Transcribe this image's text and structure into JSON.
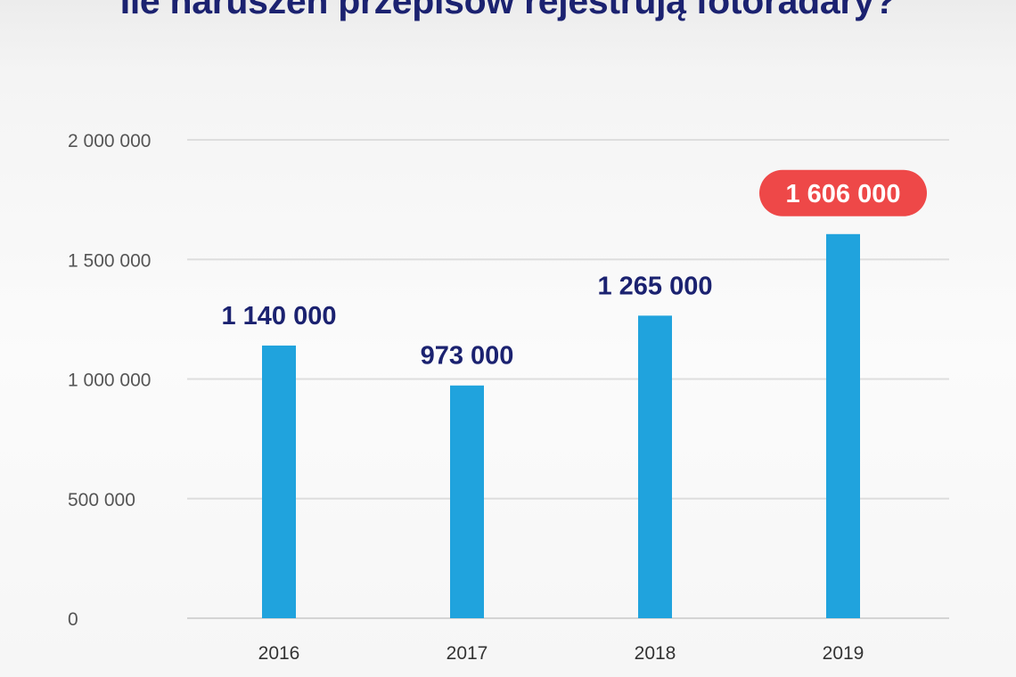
{
  "chart_data": {
    "type": "bar",
    "title": "Ile naruszeń przepisów rejestrują fotoradary?",
    "xlabel": "",
    "ylabel": "",
    "categories": [
      "2016",
      "2017",
      "2018",
      "2019"
    ],
    "values": [
      1140000,
      973000,
      1265000,
      1606000
    ],
    "data_labels": [
      "1 140 000",
      "973 000",
      "1 265 000",
      "1 606 000"
    ],
    "highlight_index": 3,
    "ylim": [
      0,
      2000000
    ],
    "yticks": [
      0,
      500000,
      1000000,
      1500000,
      2000000
    ],
    "ytick_labels": [
      "0",
      "500 000",
      "1 000 000",
      "1 500 000",
      "2 000 000"
    ],
    "grid": true,
    "colors": {
      "bar": "#20a3dd",
      "label": "#1b2270",
      "highlight_bg": "#ee4848",
      "highlight_text": "#ffffff",
      "grid": "#dedede",
      "axis_text": "#555555"
    }
  }
}
